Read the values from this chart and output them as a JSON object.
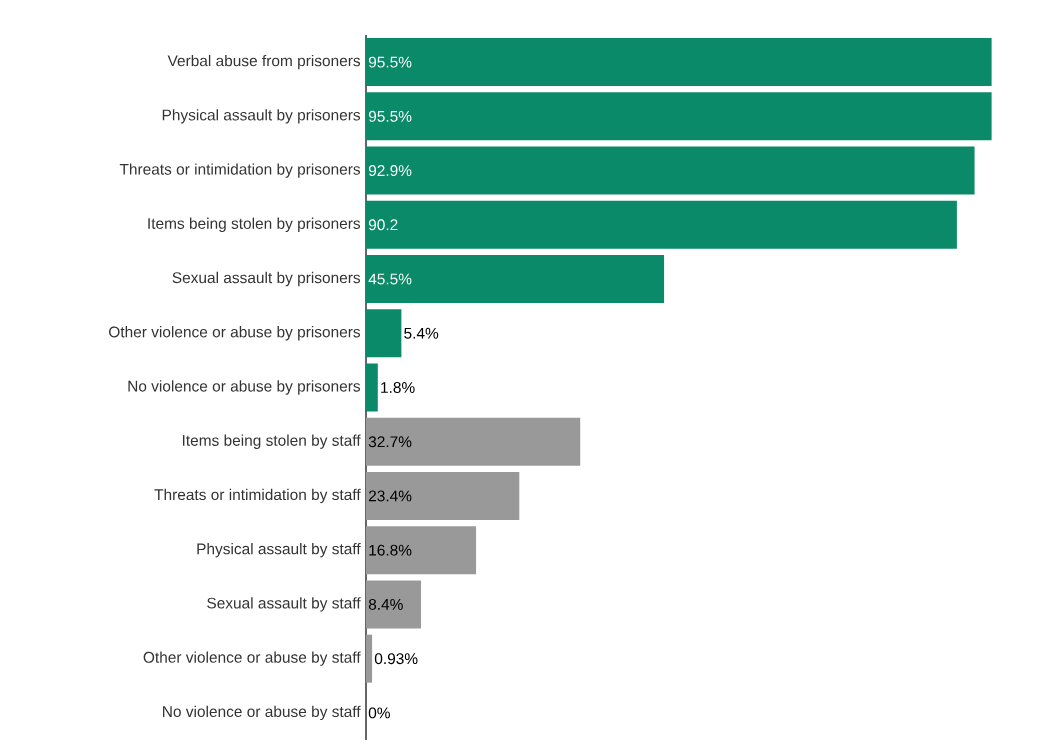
{
  "chart_data": {
    "type": "bar",
    "orientation": "horizontal",
    "categories": [
      "Verbal abuse from prisoners",
      "Physical assault by prisoners",
      "Threats or intimidation by prisoners",
      "Items being stolen by prisoners",
      "Sexual assault by prisoners",
      "Other violence or abuse by prisoners",
      "No violence or abuse by prisoners",
      "Items being stolen by staff",
      "Threats or intimidation by staff",
      "Physical assault by staff",
      "Sexual assault by staff",
      "Other violence or abuse by staff",
      "No violence or abuse by staff"
    ],
    "values": [
      95.5,
      95.5,
      92.9,
      90.2,
      45.5,
      5.4,
      1.8,
      32.7,
      23.4,
      16.8,
      8.4,
      0.93,
      0
    ],
    "value_labels": [
      "95.5%",
      "95.5%",
      "92.9%",
      "90.2",
      "45.5%",
      "5.4%",
      "1.8%",
      "32.7%",
      "23.4%",
      "16.8%",
      "8.4%",
      "0.93%",
      "0%"
    ],
    "colors": [
      "#0a8a68",
      "#0a8a68",
      "#0a8a68",
      "#0a8a68",
      "#0a8a68",
      "#0a8a68",
      "#0a8a68",
      "#999999",
      "#999999",
      "#999999",
      "#999999",
      "#999999",
      "#999999"
    ],
    "tick_labels": "y"
  }
}
